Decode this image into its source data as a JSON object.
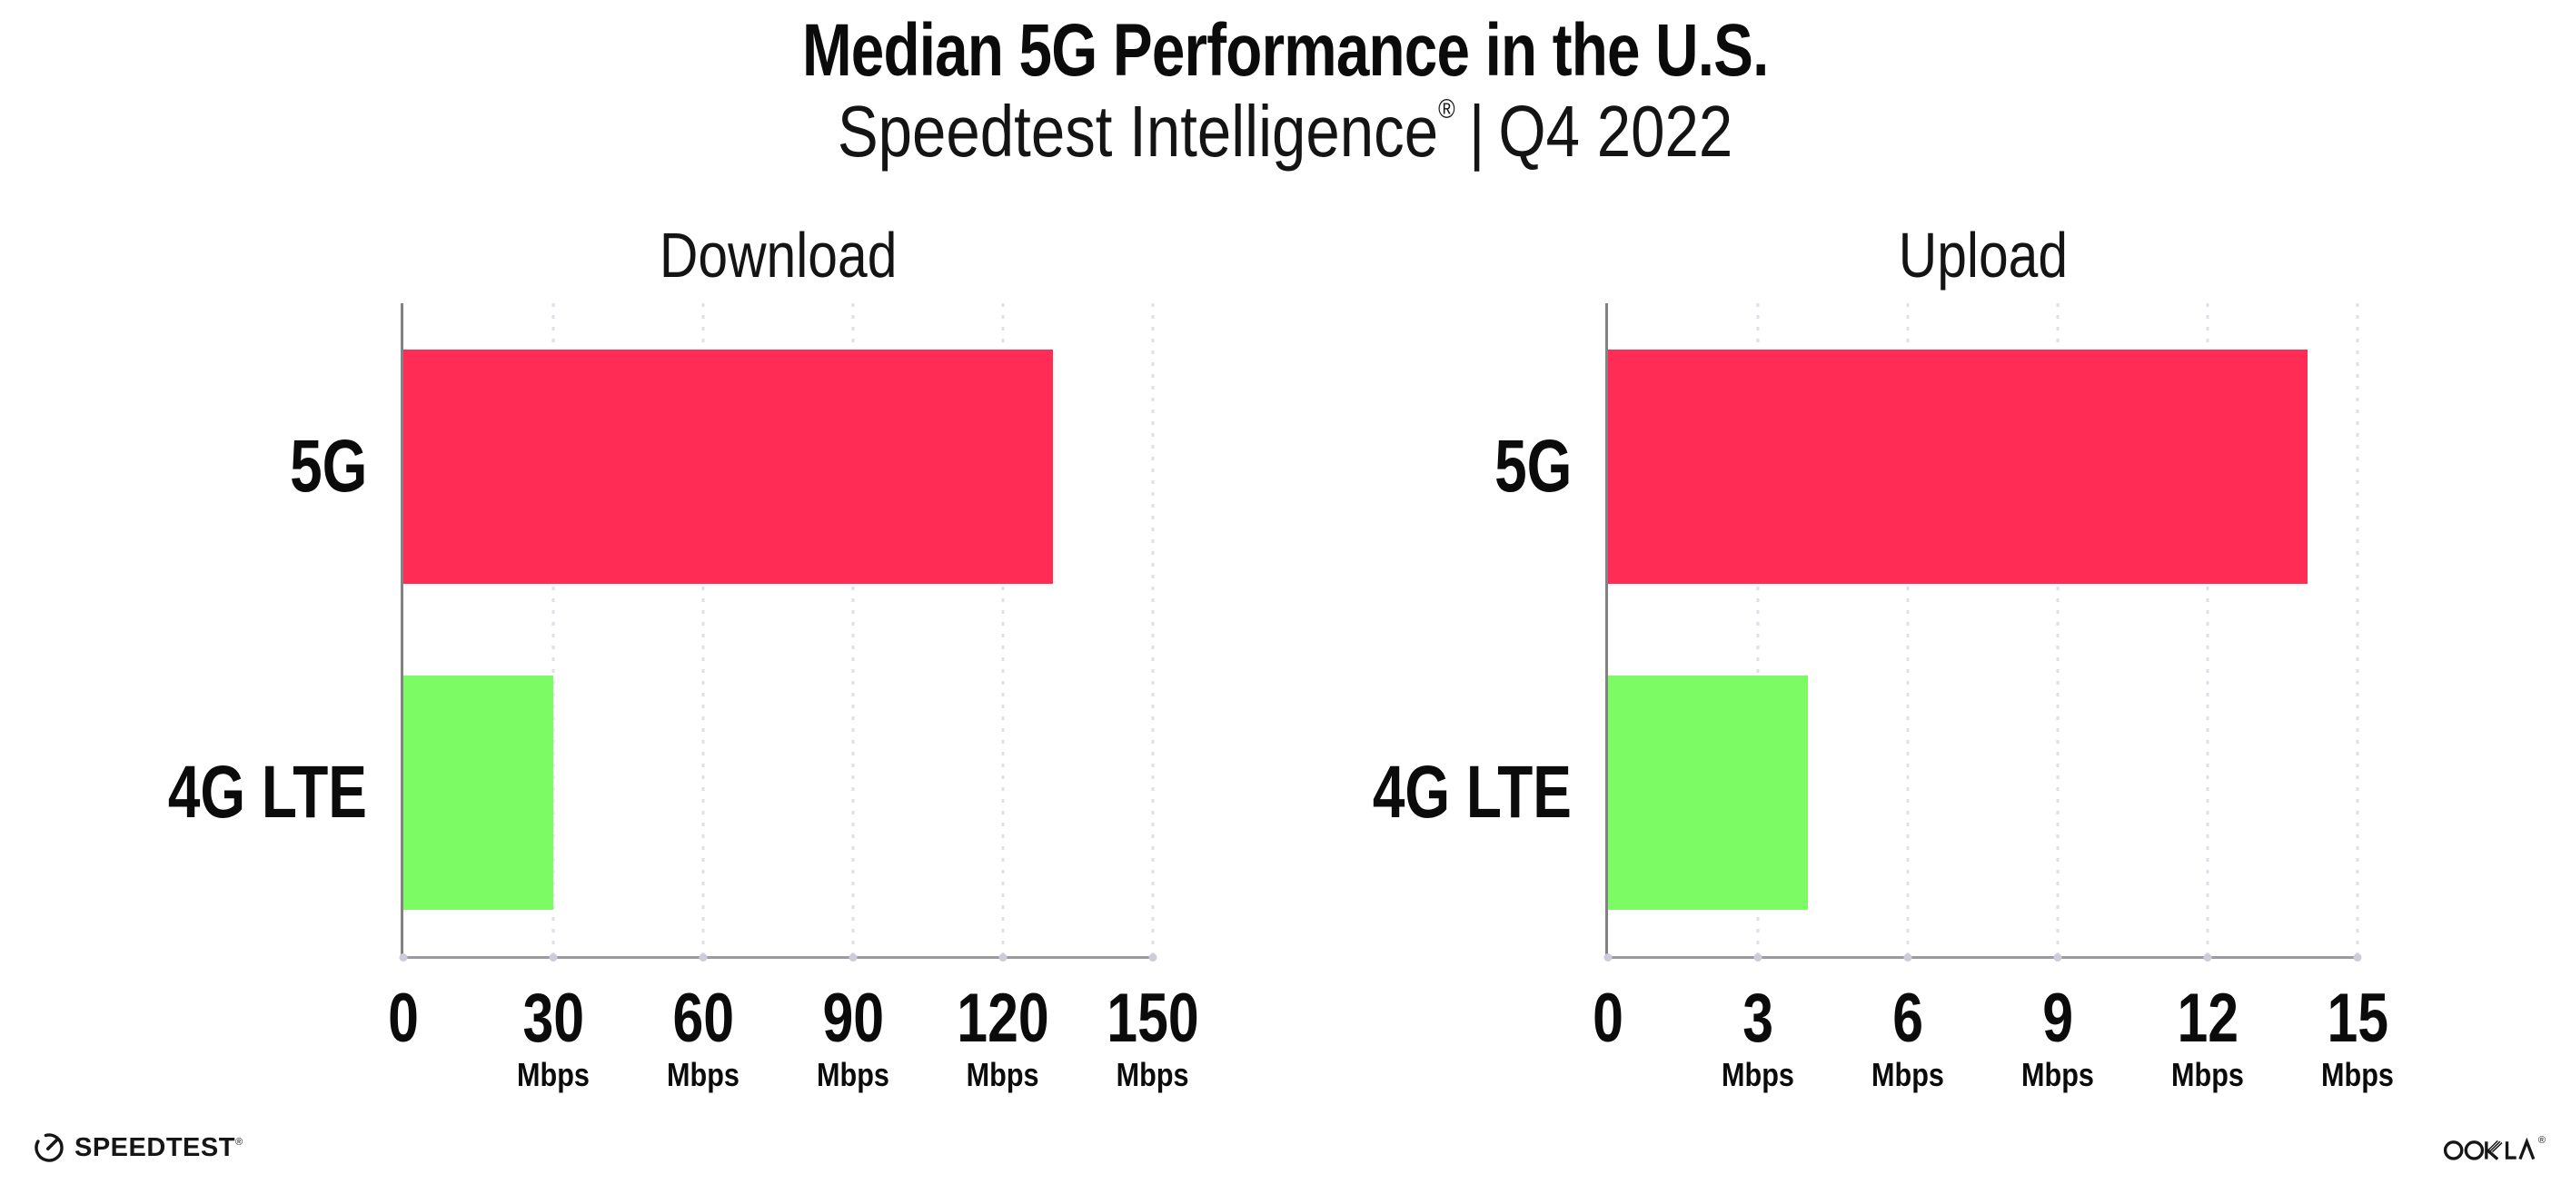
{
  "header": {
    "title": "Median 5G Performance in the U.S.",
    "subtitle_brand": "Speedtest Intelligence",
    "subtitle_reg": "®",
    "subtitle_sep": "|",
    "subtitle_period": "Q4 2022"
  },
  "chart_data": [
    {
      "type": "bar",
      "orientation": "horizontal",
      "title": "Download",
      "categories": [
        "5G",
        "4G LTE"
      ],
      "values": [
        130,
        30
      ],
      "unit": "Mbps",
      "xlim": [
        0,
        150
      ],
      "xticks": [
        0,
        30,
        60,
        90,
        120,
        150
      ],
      "bar_colors": [
        "#FF2D55",
        "#7CFB65"
      ],
      "grid": "vertical-dotted",
      "legend": "none"
    },
    {
      "type": "bar",
      "orientation": "horizontal",
      "title": "Upload",
      "categories": [
        "5G",
        "4G LTE"
      ],
      "values": [
        14,
        4
      ],
      "unit": "Mbps",
      "xlim": [
        0,
        15
      ],
      "xticks": [
        0,
        3,
        6,
        9,
        12,
        15
      ],
      "bar_colors": [
        "#FF2D55",
        "#7CFB65"
      ],
      "grid": "vertical-dotted",
      "legend": "none"
    }
  ],
  "footer": {
    "speedtest_label": "SPEEDTEST",
    "speedtest_reg": "®",
    "ookla_label": "OOKLA",
    "ookla_reg": "®"
  },
  "colors": {
    "bar_5g": "#FF2D55",
    "bar_4g_lte": "#7CFB65",
    "axis": "#9A9AA0",
    "gridline": "#DFDFE9",
    "text": "#0B0B0B"
  }
}
